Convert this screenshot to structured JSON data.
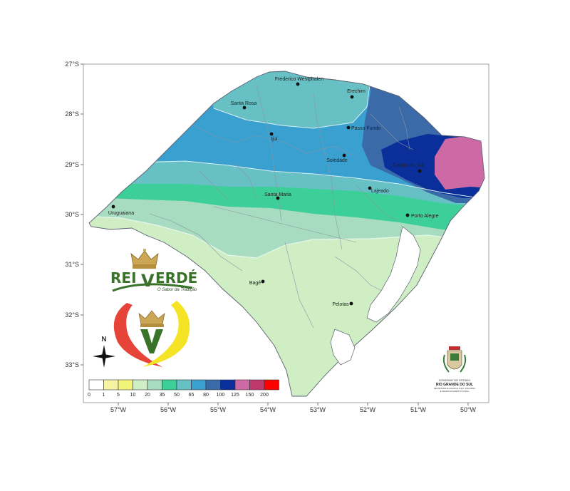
{
  "map": {
    "lat_ticks": [
      "27°S",
      "28°S",
      "29°S",
      "30°S",
      "31°S",
      "32°S",
      "33°S"
    ],
    "lon_ticks": [
      "57°W",
      "56°W",
      "55°W",
      "54°W",
      "53°W",
      "52°W",
      "51°W",
      "50°W"
    ],
    "cities": [
      {
        "name": "Frederico Westphalen"
      },
      {
        "name": "Erechim"
      },
      {
        "name": "Santa Rosa"
      },
      {
        "name": "Ijuí"
      },
      {
        "name": "Passo Fundo"
      },
      {
        "name": "Soledade"
      },
      {
        "name": "Caxias do Sul"
      },
      {
        "name": "Lajeado"
      },
      {
        "name": "Santa Maria"
      },
      {
        "name": "Uruguaiana"
      },
      {
        "name": "Porto Alegre"
      },
      {
        "name": "Bagé"
      },
      {
        "name": "Pelotas"
      }
    ],
    "north_label": "N"
  },
  "legend": {
    "labels": [
      "0",
      "1",
      "5",
      "10",
      "20",
      "35",
      "50",
      "65",
      "80",
      "100",
      "125",
      "150",
      "200"
    ],
    "colors": [
      "#ffffff",
      "#f6f4a4",
      "#f2f47a",
      "#cfeec4",
      "#a7dcc0",
      "#3dcf99",
      "#67c0c4",
      "#3aa0cf",
      "#3a6aa8",
      "#0a2f9a",
      "#cd6aa6",
      "#c0396d",
      "#ff0000"
    ]
  },
  "watermark": {
    "brand_left": "REI",
    "brand_right": "ERDÉ",
    "brand_v": "V",
    "tagline": "O Sabor da Tradição"
  },
  "seal": {
    "line1": "GOVERNO DO ESTADO",
    "line2": "RIO GRANDE DO SUL",
    "line3": "SECRETARIA DA AGRICULTURA, PECUÁRIA",
    "line4": "E DESENVOLVIMENTO RURAL"
  }
}
